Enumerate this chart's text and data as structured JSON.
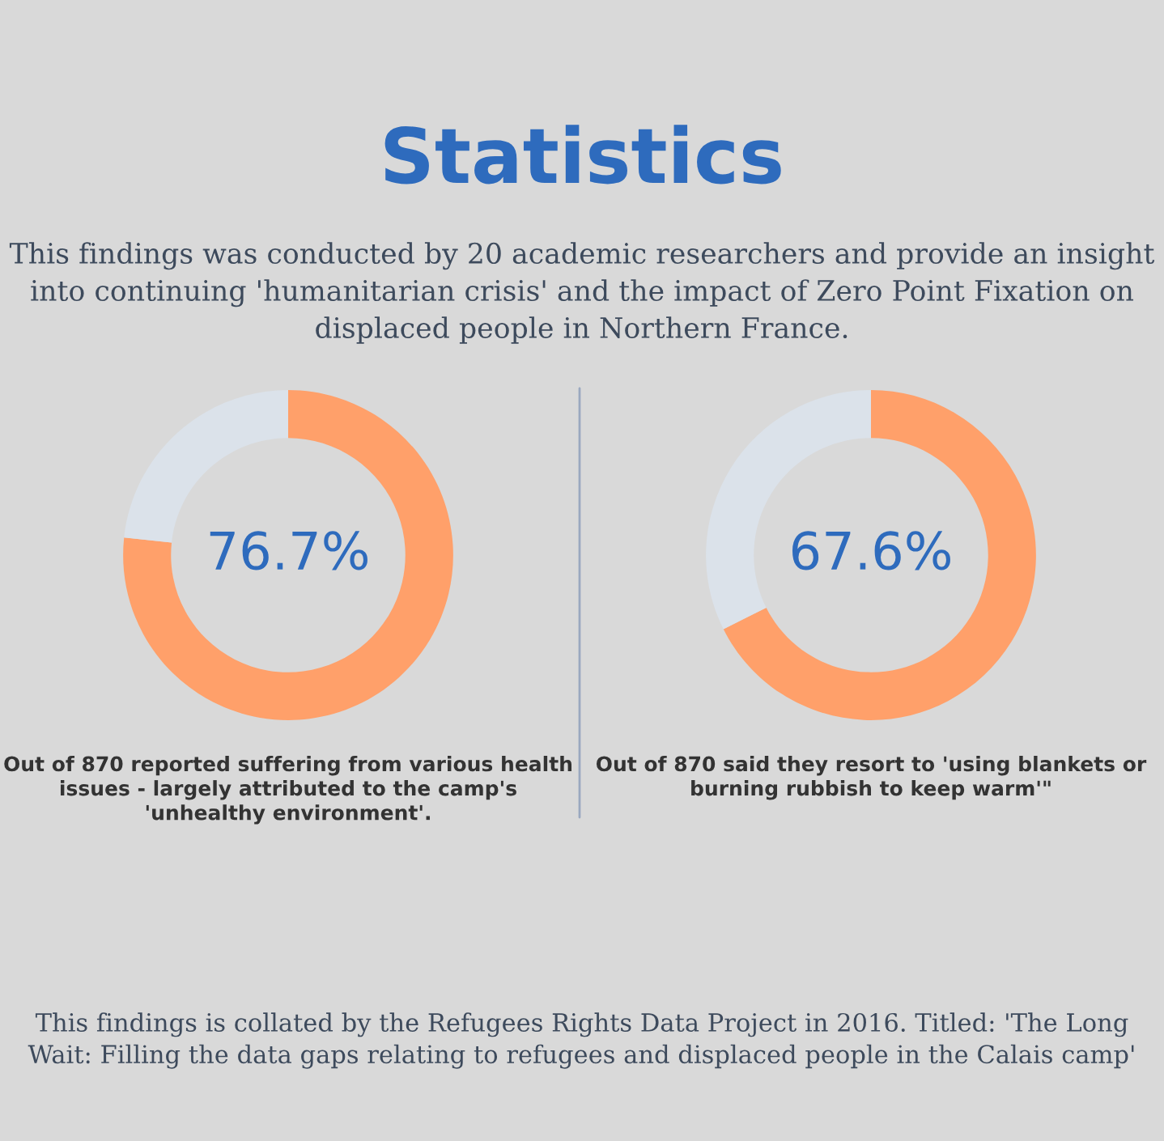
{
  "chart_data": [
    {
      "type": "donut",
      "title": "Statistics",
      "subtitle": "This findings was conducted by 20 academic researchers and provide an insight into continuing 'humanitarian crisis' and the impact of Zero Point Fixation on displaced people in Northern France.",
      "categories": [
        null,
        null
      ],
      "values": [
        76.7,
        23.3
      ],
      "colors": [
        "#ffa06a",
        "#dbe2ea"
      ],
      "value_labels": [
        "76.7%",
        null
      ],
      "annotations": [
        "Out of 870 reported suffering from various health issues - largely attributed to the camp's 'unhealthy environment'."
      ]
    },
    {
      "type": "donut",
      "categories": [
        null,
        null
      ],
      "values": [
        67.6,
        32.4
      ],
      "colors": [
        "#ffa06a",
        "#dbe2ea"
      ],
      "value_labels": [
        "67.6%",
        null
      ],
      "annotations": [
        "Out of 870 said they resort to 'using blankets or burning rubbish to keep warm'\"",
        "This findings is collated by the Refugees Rights Data Project in 2016. Titled: 'The Long Wait: Filling the data gaps relating to refugees and displaced people in the Calais camp'"
      ]
    }
  ]
}
